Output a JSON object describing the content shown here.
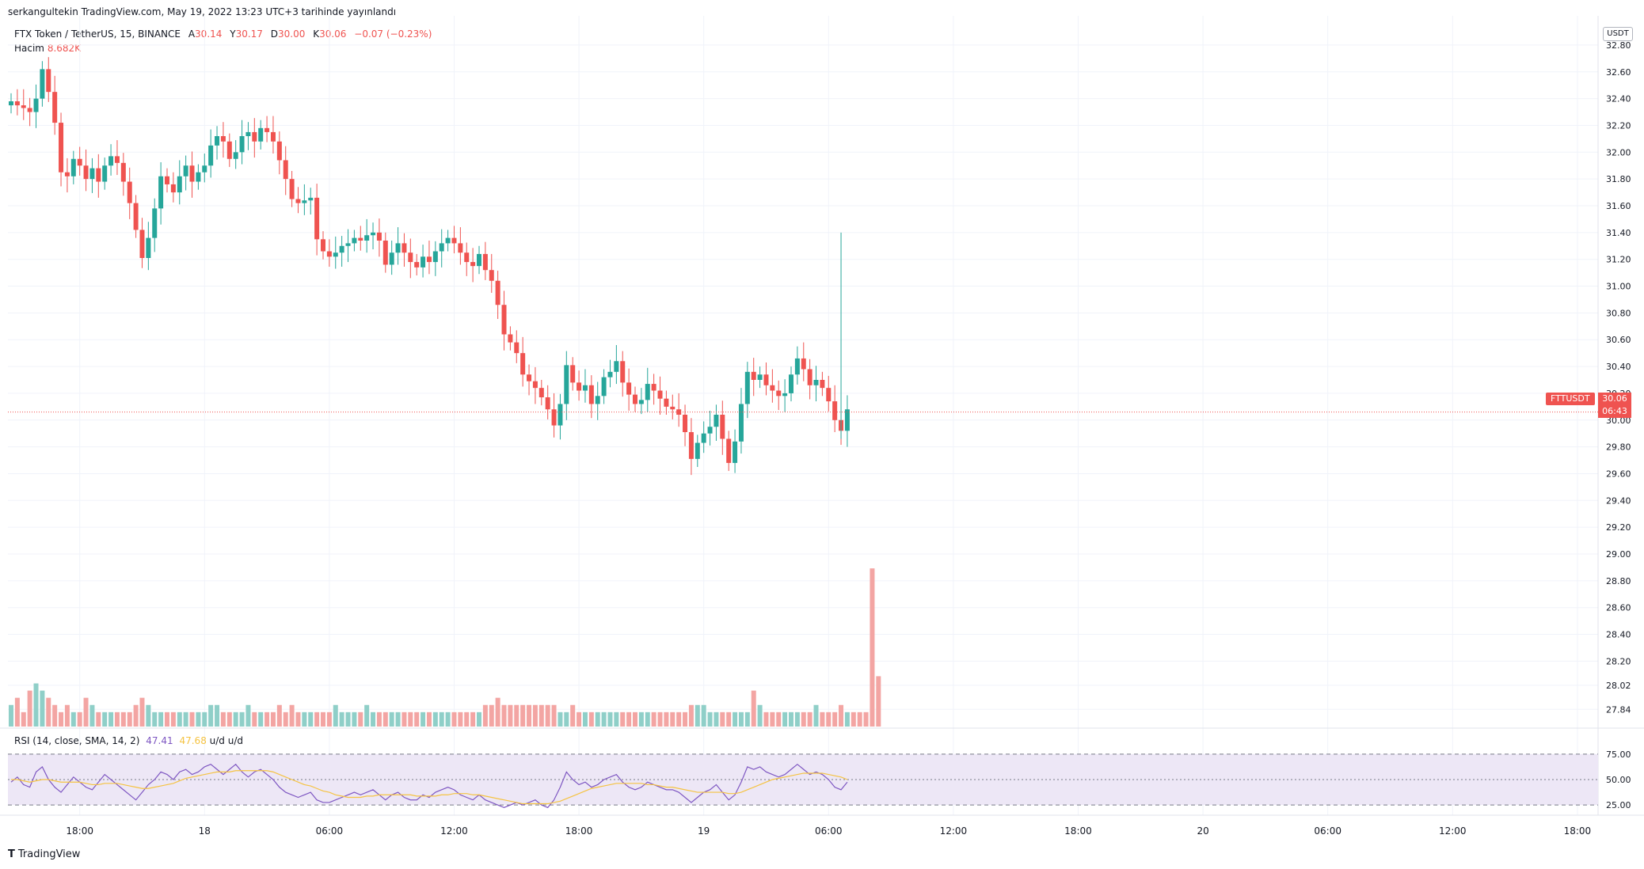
{
  "header": {
    "publish_line": "serkangultekin TradingView.com, May 19, 2022 13:23 UTC+3 tarihinde yayınlandı"
  },
  "legend": {
    "symbol": "FTX Token / TetherUS, 15, BINANCE",
    "open_label": "A",
    "open": "30.14",
    "high_label": "Y",
    "high": "30.17",
    "low_label": "D",
    "low": "30.00",
    "close_label": "K",
    "close": "30.06",
    "change": "−0.07 (−0.23%)",
    "volume_label": "Hacim",
    "volume": "8.682K"
  },
  "rsi_legend": {
    "label": "RSI (14, close, SMA, 14, 2)",
    "rsi": "47.41",
    "sma": "47.68",
    "ud1": "u/d",
    "ud2": "u/d"
  },
  "price_scale": {
    "currency": "USDT",
    "ticker_label": "FTTUSDT",
    "last_price": "30.06",
    "countdown": "06:43"
  },
  "footer": {
    "brand": "TradingView"
  },
  "colors": {
    "up": "#26a69a",
    "down": "#ef5350",
    "vol_up": "#8fcfc8",
    "vol_down": "#f3a5a3",
    "rsi": "#7e57c2",
    "rsi_sma": "#f5c342",
    "rsi_band": "#ede7f6",
    "grid": "#f0f3fa"
  },
  "chart_data": [
    {
      "type": "candlestick",
      "title": "FTX Token / TetherUS, 15, BINANCE",
      "ylim": [
        27.7,
        32.9
      ],
      "y_ticks": [
        "32.80",
        "32.60",
        "32.40",
        "32.20",
        "32.00",
        "31.80",
        "31.60",
        "31.40",
        "31.20",
        "31.00",
        "30.80",
        "30.60",
        "30.40",
        "30.20",
        "30.00",
        "29.80",
        "29.60",
        "29.40",
        "29.20",
        "29.00",
        "28.80",
        "28.60",
        "28.40",
        "28.20",
        "28.02",
        "27.84"
      ],
      "x_ticks": [
        "18:00",
        "18",
        "06:00",
        "12:00",
        "18:00",
        "19",
        "06:00",
        "12:00",
        "18:00",
        "20",
        "06:00",
        "12:00",
        "18:00"
      ],
      "x_ticks_slot": [
        11,
        31,
        51,
        71,
        91,
        111,
        131,
        151,
        171,
        191,
        211,
        231,
        251
      ],
      "last_price": 30.06,
      "candles_close": [
        32.38,
        32.35,
        32.33,
        32.3,
        32.4,
        32.62,
        32.45,
        32.22,
        31.85,
        31.82,
        31.95,
        31.9,
        31.8,
        31.88,
        31.78,
        31.9,
        31.97,
        31.92,
        31.78,
        31.62,
        31.42,
        31.21,
        31.36,
        31.58,
        31.82,
        31.76,
        31.7,
        31.82,
        31.9,
        31.78,
        31.85,
        31.9,
        32.05,
        32.12,
        32.08,
        31.95,
        32.0,
        32.12,
        32.15,
        32.08,
        32.18,
        32.15,
        32.08,
        31.94,
        31.8,
        31.65,
        31.62,
        31.64,
        31.66,
        31.35,
        31.26,
        31.22,
        31.25,
        31.3,
        31.32,
        31.36,
        31.34,
        31.38,
        31.4,
        31.34,
        31.16,
        31.25,
        31.32,
        31.25,
        31.18,
        31.14,
        31.22,
        31.18,
        31.26,
        31.32,
        31.36,
        31.32,
        31.25,
        31.18,
        31.15,
        31.24,
        31.12,
        31.04,
        30.86,
        30.64,
        30.58,
        30.5,
        30.34,
        30.29,
        30.24,
        30.17,
        30.08,
        29.96,
        30.12,
        30.41,
        30.28,
        30.22,
        30.26,
        30.12,
        30.18,
        30.32,
        30.36,
        30.44,
        30.28,
        30.19,
        30.12,
        30.15,
        30.27,
        30.22,
        30.16,
        30.1,
        30.08,
        30.04,
        29.91,
        29.71,
        29.83,
        29.9,
        29.95,
        30.04,
        29.86,
        29.68,
        29.84,
        30.12,
        30.36,
        30.3,
        30.34,
        30.26,
        30.22,
        30.18,
        30.2,
        30.34,
        30.46,
        30.38,
        30.26,
        30.3,
        30.24,
        30.14,
        30.0,
        29.92,
        30.08
      ],
      "candles_min": 29.64,
      "candles_max": 32.66
    },
    {
      "type": "bar",
      "series": [
        {
          "name": "Hacim",
          "values": [
            3,
            4,
            2,
            5,
            6,
            5,
            4,
            3,
            2,
            3,
            2,
            2,
            4,
            3,
            2,
            2,
            2,
            2,
            2,
            2,
            3,
            4,
            3,
            2,
            2,
            2,
            2,
            2,
            2,
            2,
            2,
            2,
            3,
            3,
            2,
            2,
            2,
            2,
            3,
            2,
            2,
            2,
            2,
            3,
            2,
            3,
            2,
            2,
            2,
            2,
            2,
            2,
            3,
            2,
            2,
            2,
            2,
            3,
            2,
            2,
            2,
            2,
            2,
            2,
            2,
            2,
            2,
            2,
            2,
            2,
            2,
            2,
            2,
            2,
            2,
            2,
            3,
            3,
            4,
            3,
            3,
            3,
            3,
            3,
            3,
            3,
            3,
            3,
            2,
            2,
            3,
            2,
            2,
            2,
            2,
            2,
            2,
            2,
            2,
            2,
            2,
            2,
            2,
            2,
            2,
            2,
            2,
            2,
            2,
            3,
            3,
            3,
            2,
            2,
            2,
            2,
            2,
            2,
            2,
            5,
            3,
            2,
            2,
            2,
            2,
            2,
            2,
            2,
            2,
            3,
            2,
            2,
            2,
            3,
            2,
            2,
            2,
            2,
            22,
            7
          ]
        }
      ],
      "ylim": [
        0,
        24
      ]
    },
    {
      "type": "line",
      "title": "RSI (14, close, SMA, 14, 2)",
      "y_ticks": [
        "75.00",
        "50.00",
        "25.00"
      ],
      "ylim": [
        22,
        78
      ],
      "series": [
        {
          "name": "RSI",
          "values": [
            48,
            52,
            46,
            44,
            56,
            60,
            50,
            44,
            40,
            46,
            52,
            48,
            44,
            42,
            48,
            54,
            50,
            46,
            42,
            38,
            34,
            40,
            46,
            50,
            56,
            54,
            50,
            56,
            58,
            54,
            56,
            60,
            62,
            58,
            54,
            58,
            62,
            56,
            52,
            56,
            58,
            54,
            50,
            44,
            40,
            38,
            36,
            38,
            40,
            34,
            32,
            32,
            34,
            36,
            38,
            40,
            38,
            40,
            42,
            38,
            34,
            38,
            40,
            36,
            34,
            34,
            38,
            36,
            40,
            42,
            44,
            42,
            38,
            36,
            34,
            38,
            34,
            32,
            30,
            28,
            30,
            32,
            30,
            32,
            34,
            30,
            28,
            34,
            44,
            56,
            50,
            46,
            48,
            44,
            46,
            50,
            52,
            54,
            48,
            44,
            42,
            44,
            48,
            46,
            44,
            42,
            42,
            40,
            36,
            32,
            36,
            40,
            42,
            46,
            40,
            34,
            38,
            48,
            60,
            58,
            60,
            56,
            54,
            52,
            54,
            58,
            62,
            58,
            54,
            56,
            54,
            50,
            44,
            42,
            48
          ]
        },
        {
          "name": "SMA",
          "values": [
            50,
            50,
            49,
            48,
            49,
            50,
            50,
            49,
            48,
            48,
            48,
            48,
            47,
            46,
            46,
            47,
            47,
            47,
            46,
            45,
            44,
            43,
            43,
            44,
            45,
            46,
            47,
            49,
            51,
            52,
            53,
            54,
            55,
            56,
            56,
            56,
            57,
            57,
            57,
            57,
            57,
            57,
            56,
            54,
            52,
            50,
            48,
            46,
            45,
            43,
            41,
            40,
            38,
            37,
            36,
            36,
            36,
            37,
            37,
            38,
            38,
            38,
            38,
            38,
            38,
            37,
            37,
            37,
            37,
            38,
            38,
            39,
            39,
            39,
            38,
            38,
            37,
            36,
            35,
            34,
            33,
            32,
            31,
            31,
            31,
            31,
            31,
            32,
            33,
            35,
            37,
            39,
            41,
            43,
            44,
            45,
            46,
            47,
            47,
            47,
            47,
            47,
            46,
            46,
            45,
            44,
            44,
            43,
            42,
            41,
            40,
            40,
            40,
            40,
            40,
            39,
            39,
            40,
            42,
            44,
            46,
            48,
            50,
            51,
            52,
            53,
            54,
            55,
            55,
            55,
            55,
            54,
            53,
            52,
            50
          ]
        }
      ]
    }
  ]
}
